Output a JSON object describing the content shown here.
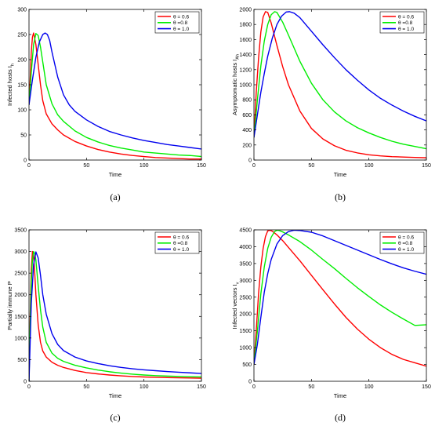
{
  "chart_data": [
    {
      "type": "line",
      "panel": "(a)",
      "xlabel": "Time",
      "ylabel": "Infected hosts I",
      "ylabel_sub": "h",
      "xlim": [
        0,
        150
      ],
      "ylim": [
        0,
        300
      ],
      "xticks": [
        0,
        50,
        100,
        150
      ],
      "yticks": [
        0,
        50,
        100,
        150,
        200,
        250,
        300
      ],
      "legend_position": "top-right",
      "series": [
        {
          "name": "θ = 0.6",
          "color": "#ff0000",
          "x": [
            0,
            1,
            2,
            3,
            4,
            6,
            8,
            10,
            12,
            15,
            20,
            25,
            30,
            40,
            50,
            60,
            70,
            80,
            90,
            100,
            110,
            120,
            130,
            140,
            150
          ],
          "y": [
            110,
            160,
            215,
            245,
            253,
            230,
            190,
            150,
            118,
            92,
            72,
            60,
            50,
            37,
            28,
            21,
            16,
            12,
            9,
            7,
            5,
            4,
            3,
            2,
            2
          ]
        },
        {
          "name": "θ =0.8",
          "color": "#00ee00",
          "x": [
            0,
            2,
            4,
            6,
            8,
            10,
            12,
            15,
            20,
            25,
            30,
            40,
            50,
            60,
            70,
            80,
            90,
            100,
            110,
            120,
            130,
            140,
            150
          ],
          "y": [
            110,
            175,
            230,
            252,
            248,
            225,
            195,
            150,
            112,
            90,
            77,
            58,
            45,
            36,
            29,
            24,
            20,
            16,
            14,
            12,
            10,
            9,
            7
          ]
        },
        {
          "name": "θ = 1.0",
          "color": "#0000ee",
          "x": [
            0,
            3,
            6,
            9,
            12,
            14,
            16,
            18,
            20,
            25,
            30,
            35,
            40,
            50,
            60,
            70,
            80,
            90,
            100,
            110,
            120,
            130,
            140,
            150
          ],
          "y": [
            110,
            160,
            205,
            235,
            250,
            253,
            250,
            238,
            215,
            165,
            130,
            110,
            97,
            80,
            67,
            57,
            50,
            44,
            39,
            35,
            31,
            28,
            25,
            22
          ]
        }
      ]
    },
    {
      "type": "line",
      "panel": "(b)",
      "xlabel": "Time",
      "ylabel": "Asymptomatic hosts I",
      "ylabel_sub": "Ah",
      "xlim": [
        0,
        150
      ],
      "ylim": [
        0,
        2000
      ],
      "xticks": [
        0,
        50,
        100,
        150
      ],
      "yticks": [
        0,
        200,
        400,
        600,
        800,
        1000,
        1200,
        1400,
        1600,
        1800,
        2000
      ],
      "legend_position": "top-right",
      "series": [
        {
          "name": "θ = 0.6",
          "color": "#ff0000",
          "x": [
            0,
            2,
            4,
            6,
            8,
            10,
            12,
            15,
            20,
            25,
            30,
            40,
            50,
            60,
            70,
            80,
            90,
            100,
            110,
            120,
            130,
            140,
            150
          ],
          "y": [
            300,
            900,
            1350,
            1700,
            1900,
            1970,
            1960,
            1820,
            1520,
            1240,
            1000,
            650,
            420,
            280,
            190,
            130,
            95,
            70,
            55,
            45,
            40,
            35,
            30
          ]
        },
        {
          "name": "θ =0.8",
          "color": "#00ee00",
          "x": [
            0,
            3,
            6,
            9,
            12,
            15,
            18,
            20,
            25,
            30,
            40,
            50,
            60,
            70,
            80,
            90,
            100,
            110,
            120,
            130,
            140,
            150
          ],
          "y": [
            300,
            800,
            1250,
            1580,
            1800,
            1930,
            1970,
            1960,
            1830,
            1660,
            1310,
            1020,
            800,
            640,
            520,
            430,
            360,
            300,
            250,
            210,
            180,
            150
          ]
        },
        {
          "name": "θ = 1.0",
          "color": "#0000ee",
          "x": [
            0,
            3,
            6,
            9,
            12,
            16,
            20,
            24,
            28,
            31,
            35,
            40,
            50,
            60,
            70,
            80,
            90,
            100,
            110,
            120,
            130,
            140,
            150
          ],
          "y": [
            300,
            600,
            900,
            1150,
            1380,
            1620,
            1800,
            1910,
            1965,
            1970,
            1950,
            1890,
            1710,
            1530,
            1360,
            1200,
            1060,
            930,
            820,
            730,
            650,
            580,
            520
          ]
        }
      ]
    },
    {
      "type": "line",
      "panel": "(c)",
      "xlabel": "Time",
      "ylabel": "Partially immune P",
      "xlim": [
        0,
        150
      ],
      "ylim": [
        0,
        3500
      ],
      "xticks": [
        0,
        50,
        100,
        150
      ],
      "yticks": [
        0,
        500,
        1000,
        1500,
        2000,
        2500,
        3000,
        3500
      ],
      "legend_position": "top-right",
      "series": [
        {
          "name": "θ = 0.6",
          "color": "#ff0000",
          "x": [
            0,
            1,
            2,
            3,
            4,
            5,
            6,
            8,
            10,
            12,
            15,
            20,
            25,
            30,
            40,
            50,
            60,
            70,
            80,
            90,
            100,
            110,
            120,
            130,
            140,
            150
          ],
          "y": [
            0,
            1500,
            2600,
            3000,
            2900,
            2500,
            2000,
            1300,
            900,
            700,
            560,
            440,
            370,
            320,
            250,
            200,
            170,
            145,
            125,
            110,
            100,
            92,
            85,
            80,
            75,
            72
          ]
        },
        {
          "name": "θ =0.8",
          "color": "#00ee00",
          "x": [
            0,
            1,
            2,
            3,
            4,
            5,
            6,
            8,
            10,
            12,
            15,
            20,
            25,
            30,
            40,
            50,
            60,
            70,
            80,
            90,
            100,
            110,
            120,
            130,
            140,
            150
          ],
          "y": [
            0,
            1300,
            2300,
            2800,
            3000,
            2950,
            2800,
            2200,
            1650,
            1250,
            900,
            650,
            530,
            460,
            370,
            310,
            260,
            220,
            190,
            165,
            145,
            130,
            120,
            112,
            105,
            100
          ]
        },
        {
          "name": "θ = 1.0",
          "color": "#0000ee",
          "x": [
            0,
            1,
            2,
            4,
            6,
            8,
            10,
            12,
            15,
            20,
            25,
            30,
            40,
            50,
            60,
            70,
            80,
            90,
            100,
            110,
            120,
            130,
            140,
            150
          ],
          "y": [
            0,
            900,
            1800,
            2700,
            2990,
            2850,
            2450,
            2000,
            1550,
            1100,
            850,
            710,
            560,
            470,
            410,
            360,
            320,
            290,
            265,
            245,
            225,
            210,
            195,
            180
          ]
        }
      ]
    },
    {
      "type": "line",
      "panel": "(d)",
      "xlabel": "Time",
      "ylabel": "Infected vectors I",
      "ylabel_sub": "v",
      "xlim": [
        0,
        150
      ],
      "ylim": [
        0,
        4500
      ],
      "xticks": [
        0,
        50,
        100,
        150
      ],
      "yticks": [
        0,
        500,
        1000,
        1500,
        2000,
        2500,
        3000,
        3500,
        4000,
        4500
      ],
      "legend_position": "top-right",
      "series": [
        {
          "name": "θ = 0.6",
          "color": "#ff0000",
          "x": [
            0,
            2,
            4,
            6,
            8,
            10,
            12,
            14,
            16,
            20,
            25,
            30,
            40,
            50,
            60,
            70,
            80,
            90,
            100,
            110,
            120,
            130,
            140,
            150
          ],
          "y": [
            500,
            1500,
            2600,
            3400,
            3950,
            4300,
            4470,
            4490,
            4460,
            4350,
            4180,
            3980,
            3580,
            3150,
            2720,
            2300,
            1900,
            1550,
            1250,
            1000,
            800,
            650,
            550,
            450
          ]
        },
        {
          "name": "θ =0.8",
          "color": "#00ee00",
          "x": [
            0,
            3,
            6,
            9,
            12,
            15,
            18,
            20,
            22,
            25,
            30,
            40,
            50,
            60,
            70,
            80,
            90,
            100,
            110,
            120,
            130,
            140,
            150
          ],
          "y": [
            500,
            1500,
            2600,
            3400,
            3950,
            4280,
            4450,
            4490,
            4480,
            4440,
            4350,
            4150,
            3900,
            3620,
            3350,
            3060,
            2780,
            2520,
            2270,
            2050,
            1850,
            1660,
            1680
          ]
        },
        {
          "name": "θ = 1.0",
          "color": "#0000ee",
          "x": [
            0,
            3,
            6,
            9,
            12,
            15,
            20,
            25,
            30,
            35,
            40,
            50,
            60,
            70,
            80,
            90,
            100,
            110,
            120,
            130,
            140,
            150
          ],
          "y": [
            500,
            1100,
            1900,
            2650,
            3200,
            3620,
            4080,
            4330,
            4450,
            4490,
            4480,
            4430,
            4320,
            4180,
            4040,
            3900,
            3760,
            3620,
            3490,
            3370,
            3270,
            3180
          ]
        }
      ]
    }
  ]
}
